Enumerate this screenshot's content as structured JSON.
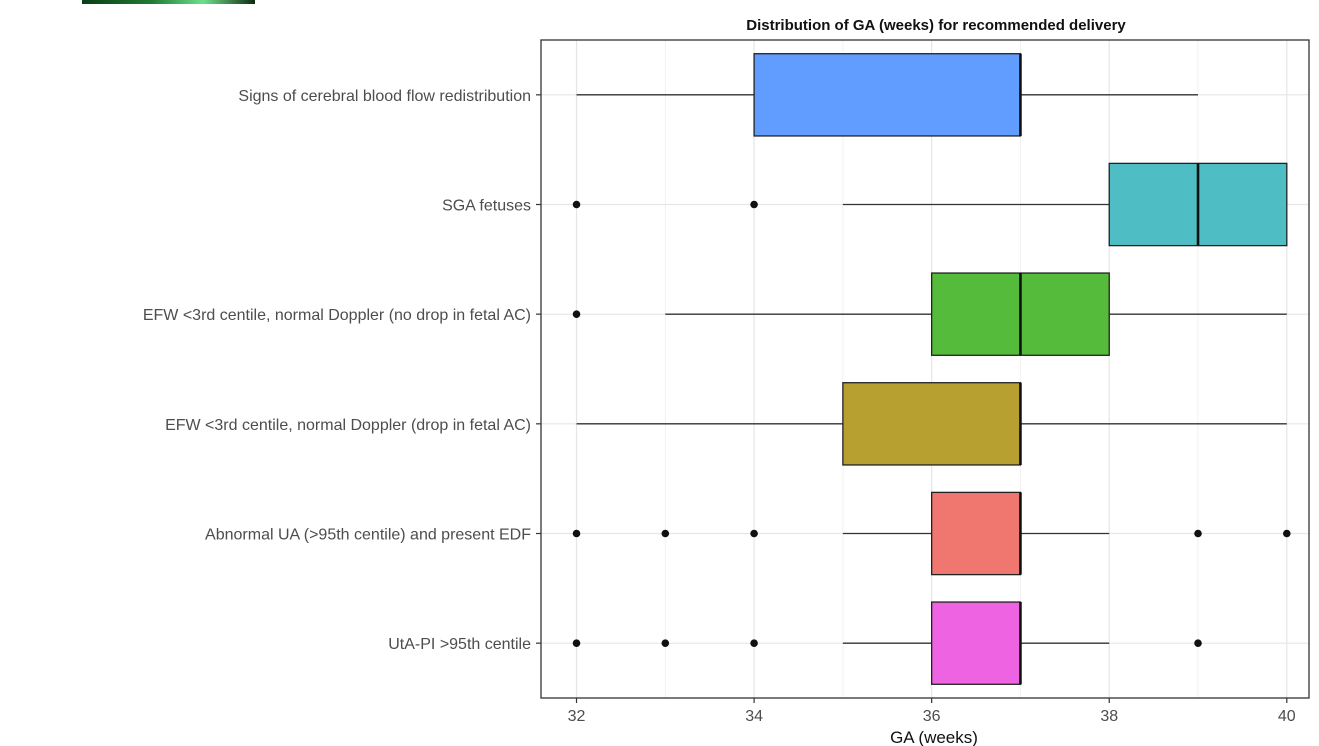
{
  "chart_data": {
    "type": "boxplot",
    "orientation": "horizontal",
    "title": "Distribution of GA (weeks) for recommended delivery",
    "xlabel": "GA (weeks)",
    "ylabel": "",
    "xlim": [
      31.6,
      40.25
    ],
    "x_ticks": [
      32,
      34,
      36,
      38,
      40
    ],
    "grid": true,
    "legend": "none",
    "categories": [
      {
        "label": "Signs of cerebral blood flow redistribution",
        "color": "#619CFF",
        "whisker_low": 32,
        "q1": 34,
        "median": 37,
        "q3": 37,
        "whisker_high": 39,
        "outliers": []
      },
      {
        "label": "SGA fetuses",
        "color": "#4FBEC4",
        "whisker_low": 35,
        "q1": 38,
        "median": 39,
        "q3": 40,
        "whisker_high": 40,
        "outliers": [
          32,
          34
        ]
      },
      {
        "label": "EFW <3rd centile, normal Doppler (no drop in fetal AC)",
        "color": "#55BB3A",
        "whisker_low": 33,
        "q1": 36,
        "median": 37,
        "q3": 38,
        "whisker_high": 40,
        "outliers": [
          32
        ]
      },
      {
        "label": "EFW <3rd centile, normal Doppler (drop in fetal AC)",
        "color": "#B79F30",
        "whisker_low": 32,
        "q1": 35,
        "median": 37,
        "q3": 37,
        "whisker_high": 40,
        "outliers": []
      },
      {
        "label": "Abnormal UA (>95th centile) and present EDF",
        "color": "#F07670",
        "whisker_low": 35,
        "q1": 36,
        "median": 37,
        "q3": 37,
        "whisker_high": 38,
        "outliers": [
          32,
          33,
          34,
          39,
          40
        ]
      },
      {
        "label": "UtA-PI >95th centile",
        "color": "#ED63E2",
        "whisker_low": 35,
        "q1": 36,
        "median": 37,
        "q3": 37,
        "whisker_high": 38,
        "outliers": [
          32,
          33,
          34,
          39
        ]
      }
    ]
  }
}
